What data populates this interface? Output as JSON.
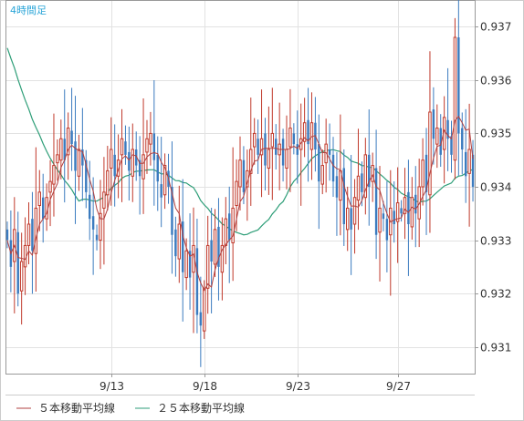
{
  "chart_data": {
    "type": "candlestick",
    "timeframe_label": "4時間足",
    "ylim": [
      0.9305,
      0.9375
    ],
    "y_ticks": [
      "0.931",
      "0.932",
      "0.933",
      "0.934",
      "0.935",
      "0.936",
      "0.937"
    ],
    "x_tick_labels": [
      {
        "label": "9/13",
        "index": 29
      },
      {
        "label": "9/18",
        "index": 55
      },
      {
        "label": "9/23",
        "index": 81
      },
      {
        "label": "9/27",
        "index": 109
      }
    ],
    "grid": true,
    "colors": {
      "up": "#c0392b",
      "down": "#3b7bbf",
      "ma5": "#b04040",
      "ma25": "#2e9e78",
      "grid": "#e2e2e2",
      "axis": "#999999"
    },
    "series_legend": [
      {
        "name": "５本移動平均線",
        "color": "#b04040"
      },
      {
        "name": "２５本移動平均線",
        "color": "#2e9e78"
      }
    ],
    "closes": [
      0.933,
      0.9325,
      0.9332,
      0.932,
      0.9326,
      0.9329,
      0.9333,
      0.9328,
      0.9336,
      0.9339,
      0.9334,
      0.9338,
      0.9341,
      0.9344,
      0.9346,
      0.9349,
      0.9345,
      0.9351,
      0.9348,
      0.9343,
      0.9347,
      0.9344,
      0.9339,
      0.9334,
      0.9332,
      0.933,
      0.9335,
      0.9339,
      0.9343,
      0.9347,
      0.9342,
      0.9345,
      0.9349,
      0.9346,
      0.9343,
      0.9347,
      0.9344,
      0.9342,
      0.9346,
      0.9349,
      0.935,
      0.9345,
      0.9341,
      0.9338,
      0.9344,
      0.934,
      0.9331,
      0.9327,
      0.9333,
      0.9324,
      0.9328,
      0.9323,
      0.9329,
      0.9316,
      0.9314,
      0.9321,
      0.9329,
      0.9326,
      0.9332,
      0.9325,
      0.9329,
      0.9334,
      0.933,
      0.9336,
      0.9341,
      0.9345,
      0.9339,
      0.9343,
      0.9347,
      0.935,
      0.9346,
      0.9349,
      0.9344,
      0.9347,
      0.935,
      0.9346,
      0.9348,
      0.9344,
      0.9347,
      0.9351,
      0.9348,
      0.9346,
      0.9349,
      0.9352,
      0.9348,
      0.9352,
      0.9347,
      0.9341,
      0.9344,
      0.9348,
      0.9346,
      0.9341,
      0.9338,
      0.9343,
      0.9333,
      0.9336,
      0.9332,
      0.9338,
      0.9342,
      0.9339,
      0.9346,
      0.934,
      0.9344,
      0.9331,
      0.9336,
      0.9334,
      0.933,
      0.9336,
      0.9333,
      0.9337,
      0.9335,
      0.9338,
      0.9333,
      0.9338,
      0.9335,
      0.934,
      0.9345,
      0.9339,
      0.9354,
      0.9349,
      0.9351,
      0.9346,
      0.9353,
      0.9349,
      0.9346,
      0.9368,
      0.935,
      0.9347,
      0.9342,
      0.9347,
      0.934
    ],
    "ma25_start": 0.9366
  }
}
